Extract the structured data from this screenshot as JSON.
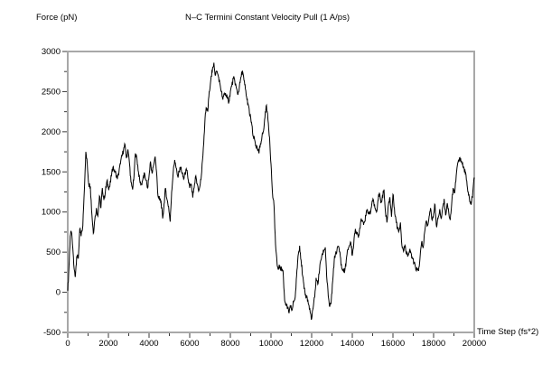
{
  "labels": {
    "y_axis_title": "Force (pN)",
    "chart_title": "N–C Termini Constant Velocity Pull (1 A/ps)",
    "x_axis_title": "Time Step (fs*2)"
  },
  "colors": {
    "background": "#ffffff",
    "frame": "#a8a8a8",
    "ticks": "#3a3a3a",
    "curve": "#000000",
    "text": "#000000"
  },
  "chart_data": {
    "type": "line",
    "title": "N–C Termini Constant Velocity Pull (1 A/ps)",
    "xlabel": "Time Step (fs*2)",
    "ylabel": "Force (pN)",
    "xlim": [
      0,
      20000
    ],
    "ylim": [
      -500,
      3000
    ],
    "x_major_ticks": [
      0,
      2000,
      4000,
      6000,
      8000,
      10000,
      12000,
      14000,
      16000,
      18000,
      20000
    ],
    "x_minor_step": 1000,
    "y_major_ticks": [
      -500,
      0,
      500,
      1000,
      1500,
      2000,
      2500,
      3000
    ],
    "y_minor_step": 250,
    "grid": false,
    "legend_position": "none",
    "series": [
      {
        "name": "force",
        "points": [
          [
            0,
            20
          ],
          [
            60,
            300
          ],
          [
            120,
            700
          ],
          [
            180,
            750
          ],
          [
            250,
            550
          ],
          [
            310,
            300
          ],
          [
            370,
            190
          ],
          [
            440,
            450
          ],
          [
            520,
            420
          ],
          [
            590,
            790
          ],
          [
            660,
            700
          ],
          [
            740,
            830
          ],
          [
            820,
            1300
          ],
          [
            890,
            1750
          ],
          [
            960,
            1600
          ],
          [
            1030,
            1350
          ],
          [
            1110,
            1320
          ],
          [
            1190,
            960
          ],
          [
            1260,
            735
          ],
          [
            1330,
            900
          ],
          [
            1410,
            1050
          ],
          [
            1480,
            950
          ],
          [
            1560,
            1200
          ],
          [
            1630,
            1050
          ],
          [
            1700,
            1300
          ],
          [
            1780,
            1150
          ],
          [
            1850,
            1250
          ],
          [
            1930,
            1390
          ],
          [
            2000,
            1300
          ],
          [
            2070,
            1320
          ],
          [
            2150,
            1450
          ],
          [
            2220,
            1560
          ],
          [
            2300,
            1520
          ],
          [
            2370,
            1480
          ],
          [
            2440,
            1410
          ],
          [
            2520,
            1500
          ],
          [
            2590,
            1600
          ],
          [
            2670,
            1700
          ],
          [
            2740,
            1770
          ],
          [
            2820,
            1840
          ],
          [
            2890,
            1670
          ],
          [
            2960,
            1780
          ],
          [
            3040,
            1600
          ],
          [
            3110,
            1370
          ],
          [
            3190,
            1280
          ],
          [
            3260,
            1450
          ],
          [
            3330,
            1730
          ],
          [
            3410,
            1650
          ],
          [
            3480,
            1500
          ],
          [
            3560,
            1360
          ],
          [
            3630,
            1350
          ],
          [
            3700,
            1420
          ],
          [
            3780,
            1480
          ],
          [
            3850,
            1400
          ],
          [
            3930,
            1300
          ],
          [
            4000,
            1450
          ],
          [
            4070,
            1630
          ],
          [
            4150,
            1480
          ],
          [
            4220,
            1580
          ],
          [
            4300,
            1690
          ],
          [
            4370,
            1500
          ],
          [
            4440,
            1200
          ],
          [
            4520,
            1150
          ],
          [
            4590,
            1130
          ],
          [
            4670,
            920
          ],
          [
            4740,
            1100
          ],
          [
            4810,
            1300
          ],
          [
            4890,
            1150
          ],
          [
            4960,
            1070
          ],
          [
            5040,
            880
          ],
          [
            5110,
            1250
          ],
          [
            5190,
            1500
          ],
          [
            5260,
            1650
          ],
          [
            5330,
            1550
          ],
          [
            5410,
            1450
          ],
          [
            5480,
            1500
          ],
          [
            5560,
            1560
          ],
          [
            5630,
            1480
          ],
          [
            5700,
            1410
          ],
          [
            5780,
            1480
          ],
          [
            5850,
            1520
          ],
          [
            5930,
            1400
          ],
          [
            6000,
            1300
          ],
          [
            6070,
            1350
          ],
          [
            6150,
            1180
          ],
          [
            6220,
            1300
          ],
          [
            6300,
            1450
          ],
          [
            6370,
            1350
          ],
          [
            6440,
            1260
          ],
          [
            6520,
            1350
          ],
          [
            6590,
            1500
          ],
          [
            6670,
            1800
          ],
          [
            6740,
            2100
          ],
          [
            6810,
            2300
          ],
          [
            6890,
            2250
          ],
          [
            6960,
            2500
          ],
          [
            7040,
            2650
          ],
          [
            7110,
            2750
          ],
          [
            7190,
            2860
          ],
          [
            7260,
            2700
          ],
          [
            7330,
            2750
          ],
          [
            7410,
            2690
          ],
          [
            7480,
            2610
          ],
          [
            7560,
            2500
          ],
          [
            7630,
            2400
          ],
          [
            7700,
            2480
          ],
          [
            7780,
            2460
          ],
          [
            7850,
            2420
          ],
          [
            7930,
            2370
          ],
          [
            8000,
            2500
          ],
          [
            8070,
            2570
          ],
          [
            8150,
            2665
          ],
          [
            8220,
            2630
          ],
          [
            8300,
            2540
          ],
          [
            8370,
            2460
          ],
          [
            8440,
            2550
          ],
          [
            8520,
            2680
          ],
          [
            8590,
            2760
          ],
          [
            8670,
            2640
          ],
          [
            8740,
            2535
          ],
          [
            8820,
            2400
          ],
          [
            8890,
            2330
          ],
          [
            8960,
            2200
          ],
          [
            9040,
            2120
          ],
          [
            9110,
            1950
          ],
          [
            9190,
            1900
          ],
          [
            9260,
            1820
          ],
          [
            9330,
            1785
          ],
          [
            9410,
            1730
          ],
          [
            9480,
            1850
          ],
          [
            9560,
            1950
          ],
          [
            9630,
            2010
          ],
          [
            9700,
            2180
          ],
          [
            9780,
            2330
          ],
          [
            9850,
            2150
          ],
          [
            9930,
            1930
          ],
          [
            10000,
            1600
          ],
          [
            10070,
            1240
          ],
          [
            10150,
            1070
          ],
          [
            10220,
            600
          ],
          [
            10300,
            345
          ],
          [
            10370,
            300
          ],
          [
            10440,
            320
          ],
          [
            10520,
            280
          ],
          [
            10590,
            270
          ],
          [
            10670,
            -100
          ],
          [
            10740,
            -150
          ],
          [
            10820,
            -200
          ],
          [
            10890,
            -260
          ],
          [
            10960,
            -180
          ],
          [
            11040,
            -220
          ],
          [
            11110,
            -120
          ],
          [
            11190,
            -60
          ],
          [
            11260,
            200
          ],
          [
            11330,
            450
          ],
          [
            11410,
            580
          ],
          [
            11480,
            400
          ],
          [
            11560,
            200
          ],
          [
            11630,
            40
          ],
          [
            11700,
            -30
          ],
          [
            11780,
            -70
          ],
          [
            11850,
            -150
          ],
          [
            11930,
            -250
          ],
          [
            12000,
            -330
          ],
          [
            12070,
            -200
          ],
          [
            12150,
            -60
          ],
          [
            12220,
            180
          ],
          [
            12300,
            100
          ],
          [
            12370,
            230
          ],
          [
            12440,
            390
          ],
          [
            12520,
            480
          ],
          [
            12590,
            510
          ],
          [
            12670,
            560
          ],
          [
            12740,
            200
          ],
          [
            12820,
            -50
          ],
          [
            12890,
            -180
          ],
          [
            12960,
            -120
          ],
          [
            13040,
            150
          ],
          [
            13110,
            400
          ],
          [
            13190,
            500
          ],
          [
            13330,
            570
          ],
          [
            13410,
            450
          ],
          [
            13480,
            300
          ],
          [
            13560,
            270
          ],
          [
            13630,
            270
          ],
          [
            13700,
            400
          ],
          [
            13780,
            530
          ],
          [
            13850,
            580
          ],
          [
            13930,
            620
          ],
          [
            14000,
            455
          ],
          [
            14070,
            600
          ],
          [
            14150,
            790
          ],
          [
            14220,
            730
          ],
          [
            14300,
            680
          ],
          [
            14370,
            800
          ],
          [
            14440,
            920
          ],
          [
            14520,
            880
          ],
          [
            14590,
            870
          ],
          [
            14670,
            950
          ],
          [
            14740,
            1035
          ],
          [
            14820,
            980
          ],
          [
            14890,
            980
          ],
          [
            14960,
            1100
          ],
          [
            15040,
            1150
          ],
          [
            15110,
            1050
          ],
          [
            15190,
            1000
          ],
          [
            15260,
            1150
          ],
          [
            15330,
            1240
          ],
          [
            15410,
            1110
          ],
          [
            15480,
            1200
          ],
          [
            15560,
            1280
          ],
          [
            15630,
            1000
          ],
          [
            15700,
            870
          ],
          [
            15780,
            1100
          ],
          [
            15850,
            1185
          ],
          [
            15930,
            940
          ],
          [
            16000,
            1220
          ],
          [
            16070,
            1050
          ],
          [
            16150,
            900
          ],
          [
            16220,
            800
          ],
          [
            16300,
            770
          ],
          [
            16370,
            870
          ],
          [
            16440,
            585
          ],
          [
            16520,
            510
          ],
          [
            16590,
            585
          ],
          [
            16670,
            500
          ],
          [
            16740,
            455
          ],
          [
            16820,
            520
          ],
          [
            16890,
            490
          ],
          [
            16960,
            420
          ],
          [
            17040,
            360
          ],
          [
            17110,
            310
          ],
          [
            17190,
            280
          ],
          [
            17260,
            265
          ],
          [
            17330,
            420
          ],
          [
            17410,
            620
          ],
          [
            17480,
            550
          ],
          [
            17560,
            750
          ],
          [
            17630,
            885
          ],
          [
            17700,
            830
          ],
          [
            17780,
            950
          ],
          [
            17850,
            1050
          ],
          [
            17930,
            900
          ],
          [
            18000,
            980
          ],
          [
            18070,
            1090
          ],
          [
            18150,
            810
          ],
          [
            18220,
            920
          ],
          [
            18300,
            1035
          ],
          [
            18370,
            920
          ],
          [
            18440,
            1050
          ],
          [
            18520,
            1165
          ],
          [
            18590,
            960
          ],
          [
            18670,
            1110
          ],
          [
            18740,
            1000
          ],
          [
            18820,
            900
          ],
          [
            18890,
            1100
          ],
          [
            18960,
            1300
          ],
          [
            19040,
            1240
          ],
          [
            19110,
            1450
          ],
          [
            19190,
            1615
          ],
          [
            19260,
            1640
          ],
          [
            19330,
            1670
          ],
          [
            19410,
            1600
          ],
          [
            19480,
            1560
          ],
          [
            19560,
            1480
          ],
          [
            19630,
            1390
          ],
          [
            19700,
            1250
          ],
          [
            19780,
            1130
          ],
          [
            19850,
            1090
          ],
          [
            19930,
            1250
          ],
          [
            20000,
            1430
          ]
        ]
      }
    ]
  }
}
